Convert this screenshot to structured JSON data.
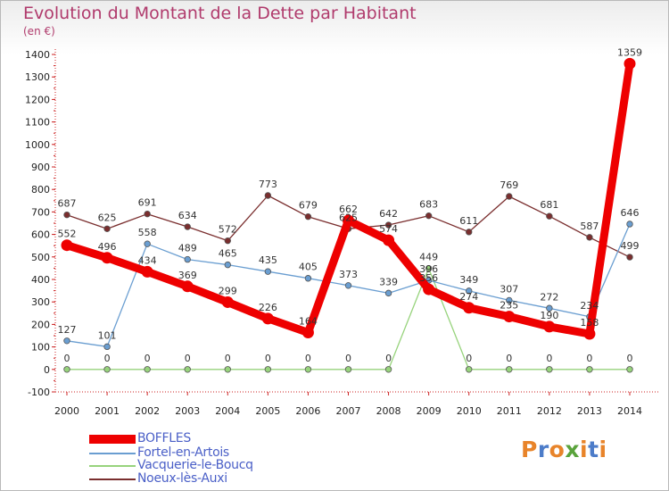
{
  "title": "Evolution du Montant de la Dette par Habitant",
  "subtitle": "(en €)",
  "logo_text": "Proxiti",
  "logo_colors": [
    "#e8842a",
    "#4c7cc9",
    "#e8842a",
    "#5aa33c",
    "#e8842a",
    "#4c7cc9",
    "#e8842a"
  ],
  "chart_data": {
    "type": "line",
    "title": "Evolution du Montant de la Dette par Habitant",
    "ylabel": "(en €)",
    "xlabel": "",
    "x": [
      "2000",
      "2001",
      "2002",
      "2003",
      "2004",
      "2005",
      "2006",
      "2007",
      "2008",
      "2009",
      "2010",
      "2011",
      "2012",
      "2013",
      "2014"
    ],
    "ylim": [
      -100,
      1400
    ],
    "yticks": [
      -100,
      0,
      100,
      200,
      300,
      400,
      500,
      600,
      700,
      800,
      900,
      1000,
      1100,
      1200,
      1300,
      1400
    ],
    "grid": false,
    "legend_position": "bottom-left",
    "series": [
      {
        "name": "BOFFLES",
        "color": "#ee0000",
        "values": [
          552,
          496,
          434,
          369,
          299,
          226,
          164,
          662,
          574,
          356,
          274,
          235,
          190,
          158,
          1359
        ]
      },
      {
        "name": "Fortel-en-Artois",
        "color": "#6a9ed1",
        "values": [
          127,
          101,
          558,
          489,
          465,
          435,
          405,
          373,
          339,
          396,
          349,
          307,
          272,
          234,
          646
        ]
      },
      {
        "name": "Vacquerie-le-Boucq",
        "color": "#97d37c",
        "values": [
          0,
          0,
          0,
          0,
          0,
          0,
          0,
          0,
          0,
          449,
          0,
          0,
          0,
          0,
          0
        ]
      },
      {
        "name": "Noeux-lès-Auxi",
        "color": "#7a2e2e",
        "values": [
          687,
          625,
          691,
          634,
          572,
          773,
          679,
          625,
          642,
          683,
          611,
          769,
          681,
          587,
          499
        ]
      }
    ]
  }
}
